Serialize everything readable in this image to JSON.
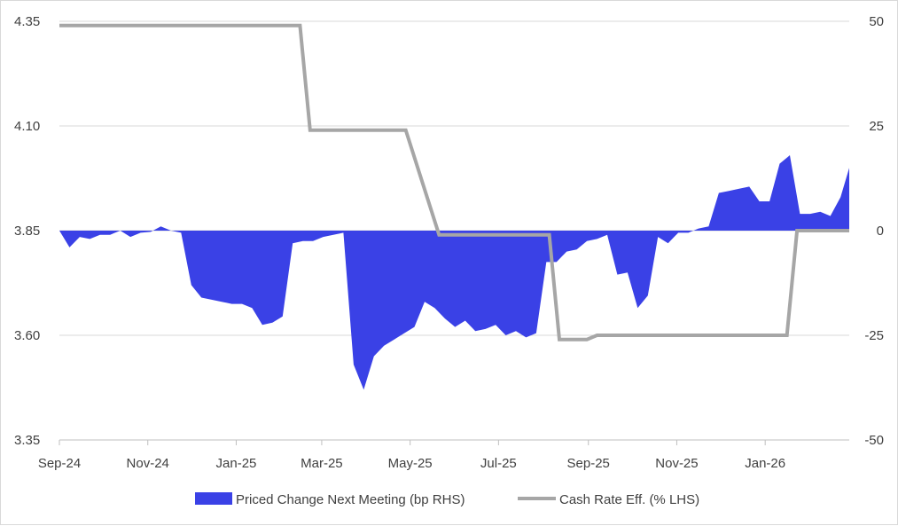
{
  "chart_data": {
    "type": "area",
    "x_tick_labels": [
      "Sep-24",
      "Nov-24",
      "Jan-25",
      "Mar-25",
      "May-25",
      "Jul-25",
      "Sep-25",
      "Nov-25",
      "Jan-26"
    ],
    "x_tick_dates": [
      "2024-09-01",
      "2024-11-01",
      "2025-01-01",
      "2025-03-01",
      "2025-05-01",
      "2025-07-01",
      "2025-09-01",
      "2025-11-01",
      "2026-01-01"
    ],
    "x_range": [
      "2024-09-01",
      "2026-02-28"
    ],
    "left_axis": {
      "ticks": [
        "3.35",
        "3.60",
        "3.85",
        "4.10",
        "4.35"
      ],
      "min": 3.35,
      "max": 4.35
    },
    "right_axis": {
      "ticks": [
        "-50",
        "-25",
        "0",
        "25",
        "50"
      ],
      "min": -50,
      "max": 50
    },
    "grid": "horizontal",
    "legend_position": "bottom",
    "series": [
      {
        "name": "Priced Change Next Meeting (bp RHS)",
        "kind": "area",
        "axis": "right",
        "color": "#3a41e6",
        "points": [
          [
            "2024-09-01",
            0
          ],
          [
            "2024-09-08",
            -4
          ],
          [
            "2024-09-15",
            -1.5
          ],
          [
            "2024-09-22",
            -2
          ],
          [
            "2024-09-29",
            -1
          ],
          [
            "2024-10-06",
            -1
          ],
          [
            "2024-10-13",
            0
          ],
          [
            "2024-10-20",
            -1.5
          ],
          [
            "2024-10-27",
            -0.5
          ],
          [
            "2024-11-03",
            -0.3
          ],
          [
            "2024-11-10",
            1
          ],
          [
            "2024-11-17",
            0
          ],
          [
            "2024-11-24",
            -0.5
          ],
          [
            "2024-12-01",
            -13
          ],
          [
            "2024-12-08",
            -16
          ],
          [
            "2024-12-15",
            -16.5
          ],
          [
            "2024-12-22",
            -17
          ],
          [
            "2024-12-29",
            -17.5
          ],
          [
            "2025-01-05",
            -17.5
          ],
          [
            "2025-01-12",
            -18.5
          ],
          [
            "2025-01-19",
            -22.5
          ],
          [
            "2025-01-26",
            -22
          ],
          [
            "2025-02-02",
            -20.5
          ],
          [
            "2025-02-09",
            -3
          ],
          [
            "2025-02-16",
            -2.5
          ],
          [
            "2025-02-23",
            -2.5
          ],
          [
            "2025-03-02",
            -1.5
          ],
          [
            "2025-03-09",
            -1
          ],
          [
            "2025-03-16",
            -0.5
          ],
          [
            "2025-03-23",
            -32
          ],
          [
            "2025-03-30",
            -38
          ],
          [
            "2025-04-06",
            -30
          ],
          [
            "2025-04-13",
            -27.5
          ],
          [
            "2025-04-20",
            -26
          ],
          [
            "2025-04-27",
            -24.5
          ],
          [
            "2025-05-04",
            -23
          ],
          [
            "2025-05-11",
            -17
          ],
          [
            "2025-05-18",
            -18.5
          ],
          [
            "2025-05-25",
            -21
          ],
          [
            "2025-06-01",
            -23
          ],
          [
            "2025-06-08",
            -21.5
          ],
          [
            "2025-06-15",
            -24
          ],
          [
            "2025-06-22",
            -23.5
          ],
          [
            "2025-06-29",
            -22.5
          ],
          [
            "2025-07-06",
            -25
          ],
          [
            "2025-07-13",
            -24
          ],
          [
            "2025-07-20",
            -25.5
          ],
          [
            "2025-07-27",
            -24.5
          ],
          [
            "2025-08-03",
            -7.5
          ],
          [
            "2025-08-10",
            -7.5
          ],
          [
            "2025-08-17",
            -5
          ],
          [
            "2025-08-24",
            -4.5
          ],
          [
            "2025-08-31",
            -2.5
          ],
          [
            "2025-09-07",
            -2
          ],
          [
            "2025-09-14",
            -1
          ],
          [
            "2025-09-21",
            -10.5
          ],
          [
            "2025-09-28",
            -10
          ],
          [
            "2025-10-05",
            -18.5
          ],
          [
            "2025-10-12",
            -15.5
          ],
          [
            "2025-10-19",
            -1.5
          ],
          [
            "2025-10-26",
            -3
          ],
          [
            "2025-11-02",
            -0.5
          ],
          [
            "2025-11-09",
            -0.5
          ],
          [
            "2025-11-16",
            0.5
          ],
          [
            "2025-11-23",
            1
          ],
          [
            "2025-11-30",
            9
          ],
          [
            "2025-12-07",
            9.5
          ],
          [
            "2025-12-14",
            10
          ],
          [
            "2025-12-21",
            10.5
          ],
          [
            "2025-12-28",
            7
          ],
          [
            "2026-01-04",
            7
          ],
          [
            "2026-01-11",
            16
          ],
          [
            "2026-01-18",
            18
          ],
          [
            "2026-01-25",
            4
          ],
          [
            "2026-02-01",
            4
          ],
          [
            "2026-02-08",
            4.5
          ],
          [
            "2026-02-15",
            3.5
          ],
          [
            "2026-02-22",
            8
          ],
          [
            "2026-02-28",
            15
          ]
        ]
      },
      {
        "name": "Cash Rate Eff. (% LHS)",
        "kind": "step-line",
        "axis": "left",
        "color": "#a6a6a6",
        "points": [
          [
            "2024-09-01",
            4.34
          ],
          [
            "2025-02-14",
            4.34
          ],
          [
            "2025-02-21",
            4.09
          ],
          [
            "2025-04-28",
            4.09
          ],
          [
            "2025-05-21",
            3.84
          ],
          [
            "2025-08-05",
            3.84
          ],
          [
            "2025-08-12",
            3.59
          ],
          [
            "2025-08-31",
            3.59
          ],
          [
            "2025-09-07",
            3.6
          ],
          [
            "2026-01-16",
            3.6
          ],
          [
            "2026-01-23",
            3.85
          ],
          [
            "2026-02-28",
            3.85
          ]
        ]
      }
    ]
  },
  "legend": {
    "area_label": "Priced Change Next Meeting (bp RHS)",
    "line_label": "Cash Rate Eff. (% LHS)",
    "area_color": "#3a41e6",
    "line_color": "#a6a6a6"
  },
  "colors": {
    "grid": "#d9d9d9",
    "axis": "#bfbfbf",
    "text": "#404040"
  }
}
